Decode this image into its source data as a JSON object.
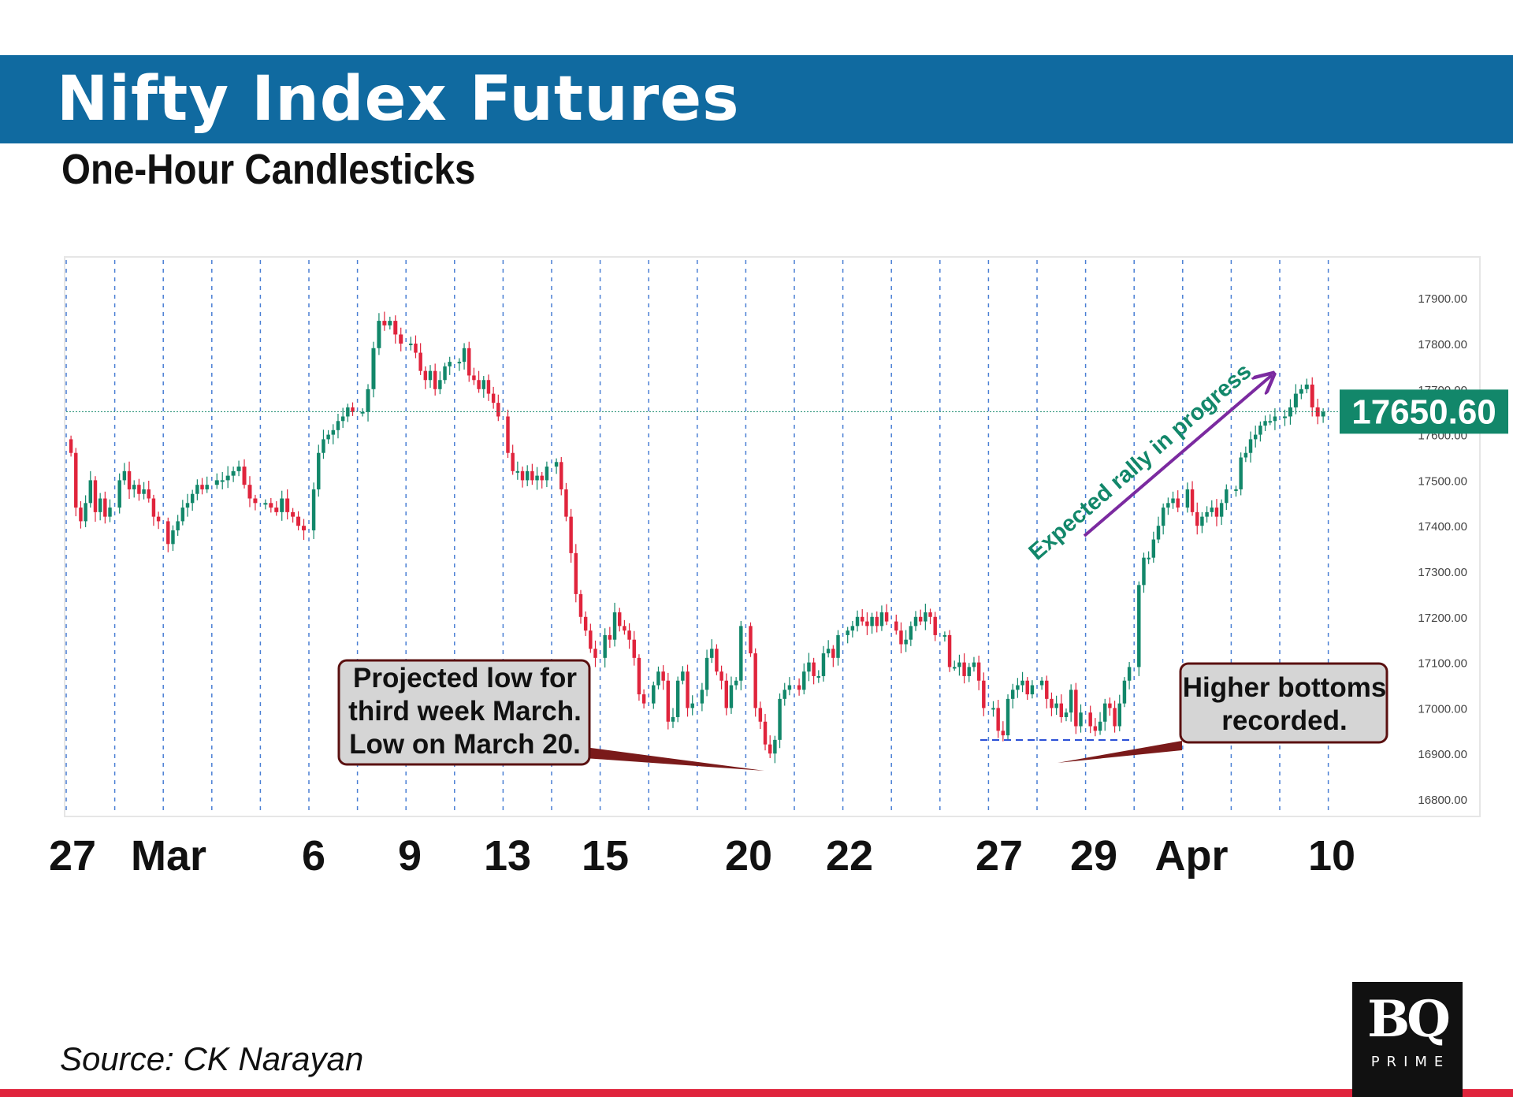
{
  "header": {
    "title": "Nifty Index Futures",
    "subtitle": "One-Hour Candlesticks"
  },
  "footer": {
    "source": "Source: CK Narayan",
    "logo_mark": "BQ",
    "logo_sub": "PRIME"
  },
  "colors": {
    "title_bar": "#106aa0",
    "up_candle": "#12876a",
    "down_candle": "#e0243c",
    "price_tag": "#12876a",
    "rally_arrow": "#7b2aa0",
    "rally_text": "#12876a",
    "accent_rule": "#e0243c"
  },
  "chart_data": {
    "type": "candlestick",
    "title": "Nifty Index Futures",
    "subtitle": "One-Hour Candlesticks",
    "y_axis": {
      "range": [
        16760,
        18000
      ],
      "ticks": [
        "16800.00",
        "16900.00",
        "17000.00",
        "17100.00",
        "17200.00",
        "17300.00",
        "17400.00",
        "17500.00",
        "17600.00",
        "17700.00",
        "17800.00",
        "17900.00"
      ]
    },
    "x_tick_labels": [
      "27",
      "Mar",
      "6",
      "9",
      "13",
      "15",
      "20",
      "22",
      "27",
      "29",
      "Apr",
      "10"
    ],
    "grid": "vertical dashed session separators",
    "last_price": 17650.6,
    "last_price_label": "17650.60",
    "sessions": [
      [
        17560,
        17440,
        17410,
        17450,
        17500,
        17430,
        17460,
        17420,
        17440
      ],
      [
        17500,
        17520,
        17480,
        17490,
        17470,
        17480,
        17460,
        17420,
        17410
      ],
      [
        17360,
        17390,
        17410,
        17440,
        17450,
        17470,
        17490,
        17480,
        17490
      ],
      [
        17500,
        17500,
        17510,
        17520,
        17530,
        17490,
        17460,
        17450
      ],
      [
        17450,
        17440,
        17430,
        17460,
        17430,
        17420,
        17400,
        17390
      ],
      [
        17480,
        17560,
        17590,
        17600,
        17610,
        17630,
        17640,
        17660,
        17650
      ],
      [
        17650,
        17700,
        17790,
        17850,
        17840,
        17850,
        17820,
        17800
      ],
      [
        17800,
        17780,
        17740,
        17720,
        17740,
        17700,
        17720,
        17750,
        17760
      ],
      [
        17760,
        17790,
        17730,
        17720,
        17700,
        17720,
        17690,
        17670,
        17640
      ],
      [
        17560,
        17520,
        17520,
        17500,
        17520,
        17500,
        17510,
        17500,
        17530
      ],
      [
        17540,
        17480,
        17420,
        17340,
        17250,
        17200,
        17170,
        17130,
        17110
      ],
      [
        17160,
        17150,
        17210,
        17180,
        17170,
        17150,
        17110,
        17030,
        17010
      ],
      [
        17050,
        17080,
        17060,
        16970,
        16980,
        17060,
        17080,
        17000,
        17010
      ],
      [
        17040,
        17110,
        17130,
        17080,
        17060,
        17000,
        17050,
        17060,
        17180
      ],
      [
        17120,
        17000,
        16970,
        16920,
        16900,
        16930,
        17020,
        17040,
        17050
      ],
      [
        17040,
        17080,
        17100,
        17070,
        17070,
        17120,
        17130,
        17110,
        17160
      ],
      [
        17170,
        17180,
        17200,
        17190,
        17180,
        17200,
        17180,
        17210,
        17190
      ],
      [
        17170,
        17140,
        17150,
        17180,
        17200,
        17190,
        17210,
        17200,
        17160
      ],
      [
        17160,
        17090,
        17090,
        17100,
        17070,
        17090,
        17100,
        17060,
        17000
      ],
      [
        17000,
        16950,
        16940,
        17020,
        17040,
        17050,
        17060,
        17030,
        17050
      ],
      [
        17060,
        17020,
        17000,
        17010,
        16980,
        16990,
        17040,
        16960,
        16990
      ],
      [
        16960,
        16950,
        16970,
        17010,
        17000,
        16960,
        17010,
        17060,
        17090
      ],
      [
        17270,
        17330,
        17330,
        17370,
        17400,
        17440,
        17450,
        17460,
        17440
      ],
      [
        17480,
        17430,
        17400,
        17420,
        17430,
        17440,
        17420,
        17450,
        17480
      ],
      [
        17480,
        17550,
        17560,
        17590,
        17600,
        17620,
        17630,
        17630,
        17640
      ],
      [
        17640,
        17660,
        17690,
        17700,
        17710,
        17660,
        17640,
        17650
      ]
    ],
    "annotations": [
      {
        "text": [
          "Projected low for",
          "third week March.",
          "Low on March 20."
        ],
        "points_to": "low of March 20 session"
      },
      {
        "text": [
          "Higher bottoms",
          "recorded."
        ],
        "points_to": "lows of 27-29 March sessions"
      },
      {
        "text": "Expected rally in progress",
        "style": "arrow"
      }
    ]
  }
}
